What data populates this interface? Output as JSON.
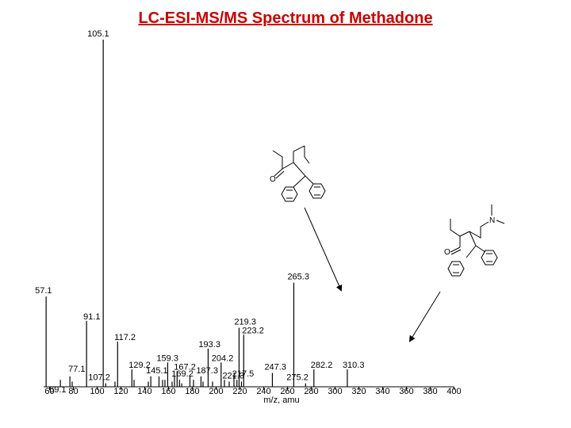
{
  "title": "LC-ESI-MS/MS Spectrum of Methadone",
  "chart_data": {
    "type": "bar",
    "title": "LC-ESI-MS/MS Spectrum of Methadone",
    "xlabel": "m/z, amu",
    "ylabel": "",
    "xlim": [
      55,
      400
    ],
    "ylim": [
      0,
      100
    ],
    "xticks": [
      60,
      80,
      100,
      120,
      140,
      160,
      180,
      200,
      220,
      240,
      260,
      280,
      300,
      320,
      340,
      360,
      380,
      400
    ],
    "grid": false,
    "peaks": [
      {
        "mz": 57.1,
        "intensity": 26,
        "label": "57.1"
      },
      {
        "mz": 69.1,
        "intensity": 2,
        "label": "69.1"
      },
      {
        "mz": 77.1,
        "intensity": 3,
        "label": "77.1"
      },
      {
        "mz": 79.0,
        "intensity": 1.5,
        "label": ""
      },
      {
        "mz": 91.1,
        "intensity": 19,
        "label": "91.1"
      },
      {
        "mz": 105.1,
        "intensity": 100,
        "label": "105.1"
      },
      {
        "mz": 107.2,
        "intensity": 1,
        "label": "107.2"
      },
      {
        "mz": 115.0,
        "intensity": 1.5,
        "label": ""
      },
      {
        "mz": 117.2,
        "intensity": 13,
        "label": "117.2"
      },
      {
        "mz": 129.2,
        "intensity": 5,
        "label": "129.2"
      },
      {
        "mz": 131.0,
        "intensity": 2,
        "label": ""
      },
      {
        "mz": 143.0,
        "intensity": 1.5,
        "label": ""
      },
      {
        "mz": 145.1,
        "intensity": 3,
        "label": "145.1"
      },
      {
        "mz": 152.0,
        "intensity": 3,
        "label": ""
      },
      {
        "mz": 155.0,
        "intensity": 2,
        "label": ""
      },
      {
        "mz": 157.0,
        "intensity": 2,
        "label": ""
      },
      {
        "mz": 159.3,
        "intensity": 7,
        "label": "159.3"
      },
      {
        "mz": 163.0,
        "intensity": 1.5,
        "label": ""
      },
      {
        "mz": 165.0,
        "intensity": 3,
        "label": ""
      },
      {
        "mz": 167.2,
        "intensity": 4.5,
        "label": "167.2"
      },
      {
        "mz": 169.2,
        "intensity": 2,
        "label": "169.2"
      },
      {
        "mz": 171.0,
        "intensity": 1,
        "label": ""
      },
      {
        "mz": 178.0,
        "intensity": 3,
        "label": ""
      },
      {
        "mz": 181.0,
        "intensity": 2,
        "label": ""
      },
      {
        "mz": 187.3,
        "intensity": 3,
        "label": "187.3"
      },
      {
        "mz": 189.0,
        "intensity": 1.5,
        "label": ""
      },
      {
        "mz": 193.3,
        "intensity": 11,
        "label": "193.3"
      },
      {
        "mz": 197.0,
        "intensity": 1.5,
        "label": ""
      },
      {
        "mz": 204.2,
        "intensity": 7,
        "label": "204.2"
      },
      {
        "mz": 207.0,
        "intensity": 2,
        "label": ""
      },
      {
        "mz": 211.0,
        "intensity": 1.5,
        "label": ""
      },
      {
        "mz": 215.0,
        "intensity": 3,
        "label": ""
      },
      {
        "mz": 217.5,
        "intensity": 2,
        "label": "217.5"
      },
      {
        "mz": 219.3,
        "intensity": 17,
        "label": "219.3"
      },
      {
        "mz": 221.3,
        "intensity": 1.5,
        "label": "221.3"
      },
      {
        "mz": 223.2,
        "intensity": 15,
        "label": "223.2"
      },
      {
        "mz": 247.3,
        "intensity": 4,
        "label": "247.3"
      },
      {
        "mz": 265.3,
        "intensity": 30,
        "label": "265.3"
      },
      {
        "mz": 275.2,
        "intensity": 1,
        "label": "275.2"
      },
      {
        "mz": 282.2,
        "intensity": 5,
        "label": "282.2"
      },
      {
        "mz": 310.3,
        "intensity": 5,
        "label": "310.3"
      }
    ],
    "annotations": [
      "structure-fragment-265",
      "structure-methadone-310"
    ]
  }
}
